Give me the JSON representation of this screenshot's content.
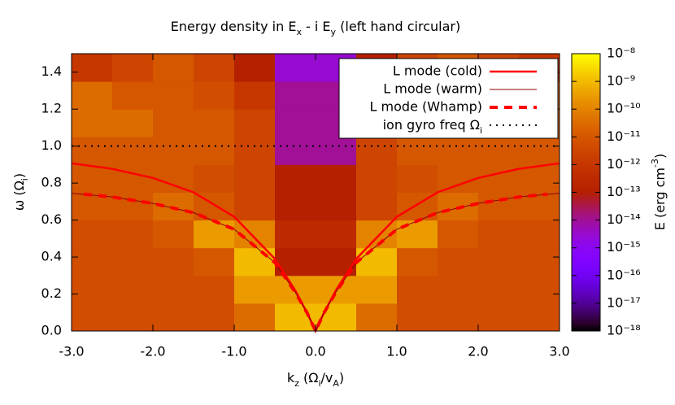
{
  "chart_data": {
    "type": "heatmap",
    "title": [
      {
        "text": "Energy density in E"
      },
      {
        "text": "x",
        "shift": "sub"
      },
      {
        "text": " - i E"
      },
      {
        "text": "y",
        "shift": "sub"
      },
      {
        "text": " (left hand circular)"
      }
    ],
    "x_label": [
      {
        "text": "k"
      },
      {
        "text": "z",
        "shift": "sub"
      },
      {
        "text": " (Ω"
      },
      {
        "text": "i",
        "shift": "sub"
      },
      {
        "text": "/v"
      },
      {
        "text": "A",
        "shift": "sub"
      },
      {
        "text": ")"
      }
    ],
    "y_label": [
      {
        "text": "ω (Ω"
      },
      {
        "text": "i",
        "shift": "sub"
      },
      {
        "text": ")"
      }
    ],
    "colorbar_label": [
      {
        "text": "E (erg cm"
      },
      {
        "text": "-3",
        "shift": "super"
      },
      {
        "text": ")"
      }
    ],
    "xlim": [
      -3,
      3
    ],
    "ylim": [
      0,
      1.5
    ],
    "xticks": [
      {
        "value": -3,
        "label": "-3.0"
      },
      {
        "value": -2,
        "label": "-2.0"
      },
      {
        "value": -1,
        "label": "-1.0"
      },
      {
        "value": 0,
        "label": "0.0"
      },
      {
        "value": 1,
        "label": "1.0"
      },
      {
        "value": 2,
        "label": "2.0"
      },
      {
        "value": 3,
        "label": "3.0"
      }
    ],
    "yticks": [
      {
        "value": 0,
        "label": "0.0"
      },
      0.2,
      0.4,
      0.6,
      0.8,
      {
        "value": 1,
        "label": "1.0"
      },
      1.2,
      1.4
    ],
    "colormap": "gnuplot",
    "log_color": true,
    "clim": [
      1e-18,
      1e-08
    ],
    "cticks": [
      {
        "value": 1e-08,
        "label": "10⁻⁸"
      },
      {
        "value": 1e-09,
        "label": "10⁻⁹"
      },
      {
        "value": 1e-10,
        "label": "10⁻¹⁰"
      },
      {
        "value": 1e-11,
        "label": "10⁻¹¹"
      },
      {
        "value": 1e-12,
        "label": "10⁻¹²"
      },
      {
        "value": 1e-13,
        "label": "10⁻¹³"
      },
      {
        "value": 1e-14,
        "label": "10⁻¹⁴"
      },
      {
        "value": 1e-15,
        "label": "10⁻¹⁵"
      },
      {
        "value": 1e-16,
        "label": "10⁻¹⁶"
      },
      {
        "value": 1e-17,
        "label": "10⁻¹⁷"
      },
      {
        "value": 1e-18,
        "label": "10⁻¹⁸"
      }
    ],
    "x_edges": [
      -3,
      -2.5,
      -2,
      -1.5,
      -1,
      -0.5,
      0,
      0.5,
      1,
      1.5,
      2,
      2.5,
      3
    ],
    "y_edges": [
      0,
      0.15,
      0.3,
      0.45,
      0.6,
      0.75,
      0.9,
      1.05,
      1.2,
      1.35,
      1.5
    ],
    "z": [
      [
        5e-12,
        5e-12,
        5e-12,
        5e-12,
        3e-11,
        1e-09,
        1e-09,
        3e-11,
        5e-12,
        5e-12,
        5e-12,
        5e-12
      ],
      [
        5e-12,
        5e-12,
        5e-12,
        5e-12,
        3e-10,
        3e-10,
        3e-10,
        3e-10,
        5e-12,
        5e-12,
        5e-12,
        5e-12
      ],
      [
        5e-12,
        5e-12,
        5e-12,
        1e-11,
        1e-09,
        1e-13,
        1e-13,
        1e-09,
        1e-11,
        5e-12,
        5e-12,
        5e-12
      ],
      [
        5e-12,
        5e-12,
        1e-11,
        3e-10,
        1e-10,
        3e-13,
        3e-13,
        1e-10,
        3e-10,
        1e-11,
        5e-12,
        5e-12
      ],
      [
        1e-11,
        1e-11,
        3e-11,
        1e-11,
        3e-12,
        1e-13,
        1e-13,
        3e-12,
        1e-11,
        3e-11,
        1e-11,
        1e-11
      ],
      [
        1e-11,
        1e-11,
        1e-11,
        5e-12,
        3e-12,
        1e-13,
        1e-13,
        3e-12,
        5e-12,
        1e-11,
        1e-11,
        1e-11
      ],
      [
        1e-11,
        1e-11,
        1e-11,
        1e-11,
        3e-12,
        1e-14,
        1e-14,
        3e-12,
        1e-11,
        1e-11,
        1e-11,
        1e-11
      ],
      [
        3e-11,
        3e-11,
        1e-11,
        1e-11,
        3e-12,
        1e-14,
        1e-14,
        3e-12,
        1e-11,
        1e-11,
        3e-11,
        3e-11
      ],
      [
        3e-11,
        1e-11,
        1e-11,
        5e-12,
        1e-12,
        1e-14,
        1e-14,
        1e-12,
        5e-12,
        1e-11,
        1e-11,
        3e-11
      ],
      [
        1e-12,
        3e-12,
        1e-11,
        3e-12,
        1e-13,
        3e-15,
        3e-15,
        1e-13,
        3e-12,
        1e-11,
        3e-12,
        1e-12
      ]
    ],
    "legend": "upper right",
    "series": [
      {
        "name": "L mode (cold)",
        "color": "#ff0000",
        "style": "solid",
        "width": 2.5,
        "x": [
          -3,
          -2.5,
          -2,
          -1.5,
          -1,
          -0.5,
          -0.25,
          -0.1,
          0,
          0.1,
          0.25,
          0.5,
          1,
          1.5,
          2,
          2.5,
          3
        ],
        "values": [
          0.907,
          0.877,
          0.828,
          0.75,
          0.618,
          0.39,
          0.22,
          0.095,
          0,
          0.095,
          0.22,
          0.39,
          0.618,
          0.75,
          0.828,
          0.877,
          0.907
        ]
      },
      {
        "name": "L mode (warm)",
        "color": "#8b0000",
        "style": "solid",
        "width": 1,
        "x": [
          -3,
          -2.5,
          -2,
          -1.5,
          -1,
          -0.5,
          -0.25,
          -0.1,
          0,
          0.1,
          0.25,
          0.5,
          1,
          1.5,
          2,
          2.5,
          3
        ],
        "values": [
          0.745,
          0.725,
          0.69,
          0.64,
          0.55,
          0.37,
          0.21,
          0.095,
          0,
          0.095,
          0.21,
          0.37,
          0.55,
          0.64,
          0.69,
          0.725,
          0.745
        ]
      },
      {
        "name": "L mode (Whamp)",
        "color": "#ff0000",
        "style": "dashed",
        "width": 4,
        "x": [
          -2.85,
          -2.5,
          -2,
          -1.5,
          -1,
          -0.5,
          -0.25,
          -0.1,
          0,
          0.1,
          0.25,
          0.5,
          1,
          1.5,
          2,
          2.5,
          2.85
        ],
        "values": [
          0.74,
          0.725,
          0.69,
          0.64,
          0.55,
          0.37,
          0.21,
          0.095,
          0,
          0.095,
          0.21,
          0.37,
          0.55,
          0.64,
          0.69,
          0.725,
          0.74
        ]
      },
      {
        "name": [
          {
            "text": "ion gyro freq Ω"
          },
          {
            "text": "i",
            "shift": "sub"
          }
        ],
        "color": "#000000",
        "style": "dotted",
        "width": 2,
        "x": [
          -3,
          3
        ],
        "values": [
          1,
          1
        ]
      }
    ]
  }
}
